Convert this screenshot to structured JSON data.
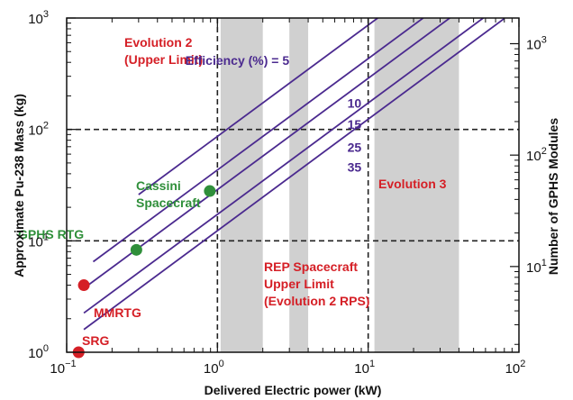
{
  "chart_data": {
    "type": "line",
    "xlabel": "Delivered Electric power (kW)",
    "ylabel": "Approximate Pu-238 Mass (kg)",
    "y2label": "Number of GPHS Modules",
    "xscale": "log",
    "yscale": "log",
    "xlim": [
      0.1,
      100
    ],
    "ylim": [
      1,
      1000
    ],
    "x_ticks": [
      {
        "base": "10",
        "exp": "−1",
        "value": 0.1
      },
      {
        "base": "10",
        "exp": "0",
        "value": 1
      },
      {
        "base": "10",
        "exp": "1",
        "value": 10
      },
      {
        "base": "10",
        "exp": "2",
        "value": 100
      }
    ],
    "y_ticks": [
      {
        "base": "10",
        "exp": "0",
        "value": 1
      },
      {
        "base": "10",
        "exp": "1",
        "value": 10
      },
      {
        "base": "10",
        "exp": "2",
        "value": 100
      },
      {
        "base": "10",
        "exp": "3",
        "value": 1000
      }
    ],
    "y2_ticks": [
      {
        "base": "10",
        "exp": "1",
        "value": 10
      },
      {
        "base": "10",
        "exp": "2",
        "value": 100
      },
      {
        "base": "10",
        "exp": "3",
        "value": 1000
      }
    ],
    "y2_conversion_modules_per_kg": 1.7,
    "shaded_x_ranges": [
      [
        1.05,
        2.0
      ],
      [
        3.0,
        4.0
      ],
      [
        11.0,
        40.0
      ]
    ],
    "dashed_lines": {
      "vertical_x": [
        1,
        10
      ],
      "horizontal_y": [
        10,
        100
      ]
    },
    "efficiency_label_prefix": "Efficiency (%) = ",
    "series": [
      {
        "name": "5",
        "efficiency": 5,
        "x": [
          0.3,
          80
        ],
        "y": [
          26,
          6900
        ],
        "label_at": [
          3.0,
          380
        ]
      },
      {
        "name": "10",
        "efficiency": 10,
        "x": [
          0.15,
          80
        ],
        "y": [
          6.5,
          3450
        ],
        "label_at": [
          8.1,
          157
        ]
      },
      {
        "name": "15",
        "efficiency": 15,
        "x": [
          0.13,
          80
        ],
        "y": [
          3.75,
          2300
        ],
        "label_at": [
          8.1,
          101
        ]
      },
      {
        "name": "25",
        "efficiency": 25,
        "x": [
          0.13,
          80
        ],
        "y": [
          2.25,
          1380
        ],
        "label_at": [
          8.1,
          63
        ]
      },
      {
        "name": "35",
        "efficiency": 35,
        "x": [
          0.13,
          80
        ],
        "y": [
          1.6,
          990
        ],
        "label_at": [
          8.1,
          42
        ]
      }
    ],
    "points": [
      {
        "label": "SRG",
        "x": 0.12,
        "y": 1.0,
        "color": "#d51f26"
      },
      {
        "label": "MMRTG",
        "x": 0.13,
        "y": 4.0,
        "color": "#d51f26"
      },
      {
        "label": "GPHS RTG",
        "x": 0.29,
        "y": 8.3,
        "color": "#2f8f3a"
      },
      {
        "label": "Cassini Spacecraft",
        "x": 0.89,
        "y": 28,
        "color": "#2f8f3a"
      }
    ],
    "annotations": [
      {
        "id": "evolution-2",
        "lines": [
          "Evolution 2",
          "(Upper Limit)"
        ],
        "color": "#d51f26"
      },
      {
        "id": "evolution-3",
        "lines": [
          "Evolution 3"
        ],
        "color": "#d51f26"
      },
      {
        "id": "rep-spacecraft",
        "lines": [
          "REP Spacecraft",
          "Upper Limit",
          "(Evolution 2 RPS)"
        ],
        "color": "#d51f26"
      },
      {
        "id": "cassini",
        "lines": [
          "Cassini",
          "Spacecraft"
        ],
        "color": "#2f8f3a"
      },
      {
        "id": "gphs-rtg",
        "lines": [
          "GPHS RTG"
        ],
        "color": "#2f8f3a"
      },
      {
        "id": "mmrtg",
        "lines": [
          "MMRTG"
        ],
        "color": "#d51f26"
      },
      {
        "id": "srg",
        "lines": [
          "SRG"
        ],
        "color": "#d51f26"
      }
    ],
    "colors": {
      "line": "#4b2a8f",
      "shade": "#d0d0d0",
      "dashed": "#222222",
      "efficiency_text": "#4b2a8f"
    }
  }
}
